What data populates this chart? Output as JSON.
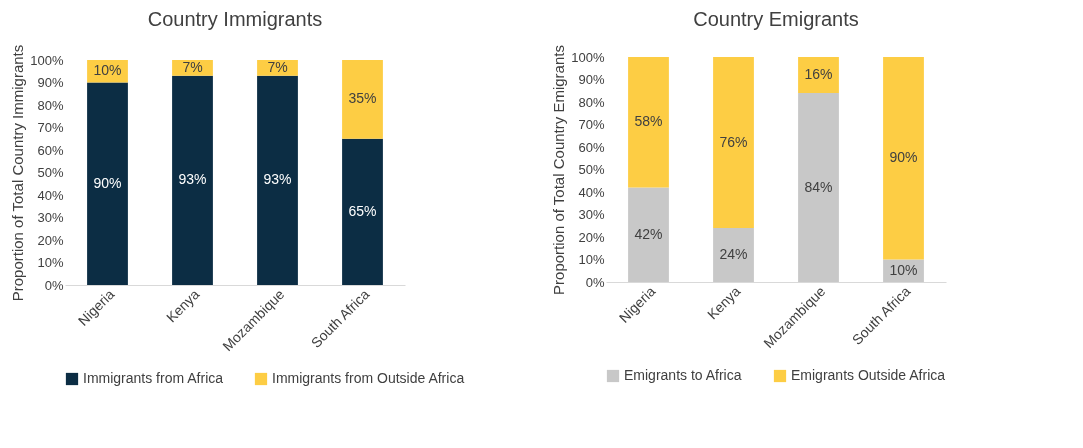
{
  "chart_data": [
    {
      "type": "bar",
      "title": "Country Immigrants",
      "ylabel": "Proportion of Total Country Immigrants",
      "categories": [
        "Nigeria",
        "Kenya",
        "Mozambique",
        "South Africa"
      ],
      "stacked": true,
      "legend": "bottom",
      "ylim": [
        0,
        100
      ],
      "yticks": [
        {
          "value": 0,
          "label": "0%"
        },
        {
          "value": 10,
          "label": "10%"
        },
        {
          "value": 20,
          "label": "20%"
        },
        {
          "value": 30,
          "label": "30%"
        },
        {
          "value": 40,
          "label": "40%"
        },
        {
          "value": 50,
          "label": "50%"
        },
        {
          "value": 60,
          "label": "60%"
        },
        {
          "value": 70,
          "label": "70%"
        },
        {
          "value": 80,
          "label": "80%"
        },
        {
          "value": 90,
          "label": "90%"
        },
        {
          "value": 100,
          "label": "100%"
        }
      ],
      "series": [
        {
          "name": "Immigrants from Africa",
          "color": "#0c2d44",
          "values": [
            90,
            93,
            93,
            65
          ],
          "value_labels": [
            "90%",
            "93%",
            "93%",
            "65%"
          ]
        },
        {
          "name": "Immigrants from Outside Africa",
          "color": "#fdcd44",
          "values": [
            10,
            7,
            7,
            35
          ],
          "value_labels": [
            "10%",
            "7%",
            "7%",
            "35%"
          ]
        }
      ]
    },
    {
      "type": "bar",
      "title": "Country Emigrants",
      "ylabel": "Proportion of Total Country Emigrants",
      "categories": [
        "Nigeria",
        "Kenya",
        "Mozambique",
        "South Africa"
      ],
      "stacked": true,
      "legend": "bottom",
      "ylim": [
        0,
        100
      ],
      "yticks": [
        {
          "value": 0,
          "label": "0%"
        },
        {
          "value": 10,
          "label": "10%"
        },
        {
          "value": 20,
          "label": "20%"
        },
        {
          "value": 30,
          "label": "30%"
        },
        {
          "value": 40,
          "label": "40%"
        },
        {
          "value": 50,
          "label": "50%"
        },
        {
          "value": 60,
          "label": "60%"
        },
        {
          "value": 70,
          "label": "70%"
        },
        {
          "value": 80,
          "label": "80%"
        },
        {
          "value": 90,
          "label": "90%"
        },
        {
          "value": 100,
          "label": "100%"
        }
      ],
      "series": [
        {
          "name": "Emigrants to Africa",
          "color": "#c8c8c8",
          "values": [
            42,
            24,
            84,
            10
          ],
          "value_labels": [
            "42%",
            "24%",
            "84%",
            "10%"
          ]
        },
        {
          "name": "Emigrants Outside Africa",
          "color": "#fdcd44",
          "values": [
            58,
            76,
            16,
            90
          ],
          "value_labels": [
            "58%",
            "76%",
            "16%",
            "90%"
          ]
        }
      ]
    }
  ]
}
